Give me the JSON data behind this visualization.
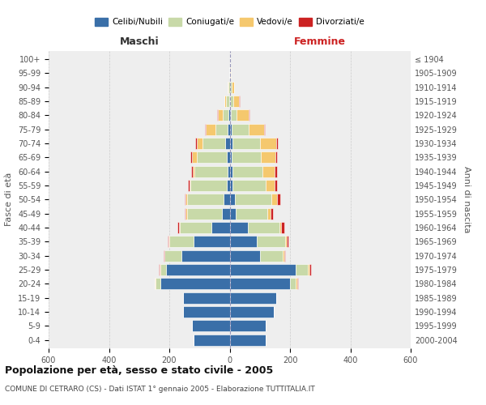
{
  "age_groups": [
    "0-4",
    "5-9",
    "10-14",
    "15-19",
    "20-24",
    "25-29",
    "30-34",
    "35-39",
    "40-44",
    "45-49",
    "50-54",
    "55-59",
    "60-64",
    "65-69",
    "70-74",
    "75-79",
    "80-84",
    "85-89",
    "90-94",
    "95-99",
    "100+"
  ],
  "birth_years": [
    "2000-2004",
    "1995-1999",
    "1990-1994",
    "1985-1989",
    "1980-1984",
    "1975-1979",
    "1970-1974",
    "1965-1969",
    "1960-1964",
    "1955-1959",
    "1950-1954",
    "1945-1949",
    "1940-1944",
    "1935-1939",
    "1930-1934",
    "1925-1929",
    "1920-1924",
    "1915-1919",
    "1910-1914",
    "1905-1909",
    "≤ 1904"
  ],
  "maschi": {
    "celibi": [
      120,
      125,
      155,
      155,
      230,
      210,
      160,
      120,
      60,
      25,
      20,
      10,
      8,
      10,
      15,
      8,
      4,
      2,
      0,
      0,
      0
    ],
    "coniugati": [
      0,
      0,
      0,
      0,
      15,
      20,
      55,
      80,
      105,
      115,
      120,
      120,
      110,
      100,
      75,
      40,
      20,
      10,
      5,
      2,
      0
    ],
    "vedovi": [
      0,
      0,
      0,
      0,
      2,
      2,
      2,
      2,
      3,
      5,
      5,
      3,
      5,
      15,
      20,
      30,
      15,
      5,
      3,
      0,
      0
    ],
    "divorziati": [
      0,
      0,
      0,
      0,
      2,
      2,
      3,
      3,
      5,
      5,
      5,
      5,
      5,
      5,
      5,
      3,
      3,
      1,
      0,
      0,
      0
    ]
  },
  "femmine": {
    "nubili": [
      120,
      120,
      145,
      155,
      200,
      220,
      100,
      90,
      60,
      20,
      18,
      10,
      10,
      8,
      10,
      8,
      4,
      2,
      1,
      0,
      0
    ],
    "coniugate": [
      0,
      0,
      0,
      0,
      20,
      40,
      75,
      95,
      105,
      105,
      120,
      110,
      100,
      95,
      90,
      55,
      20,
      10,
      5,
      2,
      0
    ],
    "vedove": [
      0,
      0,
      0,
      0,
      5,
      5,
      5,
      5,
      5,
      10,
      20,
      30,
      40,
      50,
      55,
      50,
      40,
      20,
      8,
      3,
      1
    ],
    "divorziate": [
      0,
      0,
      0,
      0,
      3,
      5,
      5,
      5,
      10,
      8,
      10,
      8,
      8,
      5,
      5,
      3,
      2,
      1,
      0,
      0,
      0
    ]
  },
  "colors": {
    "celibi": "#3A6FA8",
    "coniugati": "#C8D9A8",
    "vedovi": "#F5C86E",
    "divorziati": "#CC2222"
  },
  "title": "Popolazione per età, sesso e stato civile - 2005",
  "subtitle": "COMUNE DI CETRARO (CS) - Dati ISTAT 1° gennaio 2005 - Elaborazione TUTTITALIA.IT",
  "xlabel_left": "Maschi",
  "xlabel_right": "Femmine",
  "ylabel_left": "Fasce di età",
  "ylabel_right": "Anni di nascita",
  "xlim": 600,
  "bg_color": "#ffffff",
  "plot_bg": "#eeeeee",
  "grid_color": "#cccccc",
  "legend_labels": [
    "Celibi/Nubili",
    "Coniugati/e",
    "Vedovi/e",
    "Divorziati/e"
  ]
}
